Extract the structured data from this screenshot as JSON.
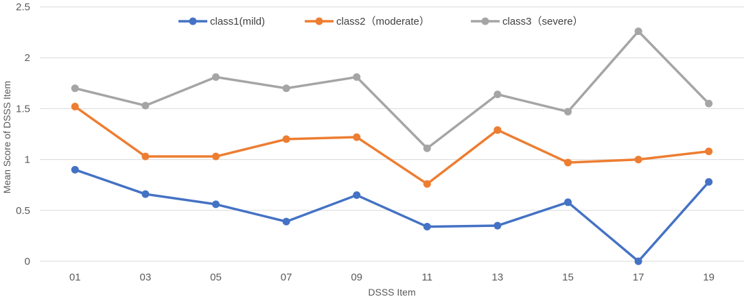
{
  "chart_data": {
    "type": "line",
    "categories": [
      "01",
      "03",
      "05",
      "07",
      "09",
      "11",
      "13",
      "15",
      "17",
      "19"
    ],
    "series": [
      {
        "name": "class1(mild)",
        "color": "#4472c4",
        "values": [
          0.9,
          0.66,
          0.56,
          0.39,
          0.65,
          0.34,
          0.35,
          0.58,
          0.0,
          0.78
        ]
      },
      {
        "name": "class2（moderate）",
        "color": "#ed7d31",
        "values": [
          1.52,
          1.03,
          1.03,
          1.2,
          1.22,
          0.76,
          1.29,
          0.97,
          1.0,
          1.08
        ]
      },
      {
        "name": "class3（severe）",
        "color": "#a5a5a5",
        "values": [
          1.7,
          1.53,
          1.81,
          1.7,
          1.81,
          1.11,
          1.64,
          1.47,
          2.26,
          1.55
        ]
      }
    ],
    "yticks": [
      "0",
      "0.5",
      "1",
      "1.5",
      "2",
      "2.5"
    ],
    "ylim": [
      0,
      2.5
    ],
    "xlabel": "DSSS Item",
    "ylabel": "Mean Score of DSSS Item",
    "grid": true,
    "legend_position": "top"
  }
}
